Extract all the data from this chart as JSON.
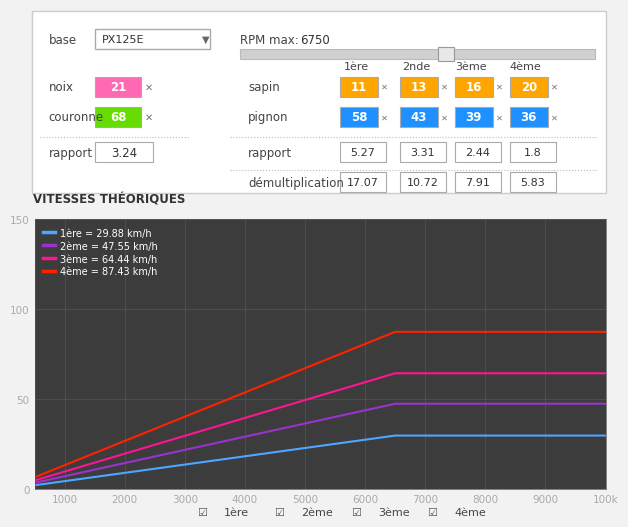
{
  "bg_color": "#f2f2f2",
  "chart_bg": "#3c3c3c",
  "base_label": "base",
  "base_value": "PX125E",
  "rpm_max_label": "RPM max:",
  "rpm_max_value": "6750",
  "noix_label": "noix",
  "noix_value": 21,
  "noix_color": "#ff69b4",
  "couronne_label": "couronne",
  "couronne_value": 68,
  "couronne_color": "#66dd00",
  "rapport_label": "rapport",
  "rapport_value": "3.24",
  "gear_headers": [
    "1ère",
    "2nde",
    "3ème",
    "4ème"
  ],
  "sapin_label": "sapin",
  "sapin_values": [
    11,
    13,
    16,
    20
  ],
  "sapin_color": "#ffa500",
  "pignon_label": "pignon",
  "pignon_values": [
    58,
    43,
    39,
    36
  ],
  "pignon_color": "#1e90ff",
  "rapport_row_label": "rapport",
  "rapport_values": [
    "5.27",
    "3.31",
    "2.44",
    "1.8"
  ],
  "demul_label": "démultiplication",
  "demul_values": [
    "17.07",
    "10.72",
    "7.91",
    "5.83"
  ],
  "chart_title": "VITESSES THÉORIQUES",
  "legend_labels": [
    "1ère = 29.88 km/h",
    "2ème = 47.55 km/h",
    "3ème = 64.44 km/h",
    "4ème = 87.43 km/h"
  ],
  "line_colors": [
    "#4da6ff",
    "#9933cc",
    "#ff1493",
    "#ff2200"
  ],
  "rpm_limit": 6500,
  "rpm_max_plot": 10000,
  "rpm_start": 500,
  "max_speeds": [
    29.88,
    47.55,
    64.44,
    87.43
  ],
  "xmin": 500,
  "xmax": 10000,
  "ymin": 0,
  "ymax": 150,
  "xticks": [
    1000,
    2000,
    3000,
    4000,
    5000,
    6000,
    7000,
    8000,
    9000,
    10000
  ],
  "yticks": [
    0,
    50,
    100,
    150
  ],
  "checkbox_labels": [
    "1ère",
    "2ème",
    "3ème",
    "4ème"
  ]
}
